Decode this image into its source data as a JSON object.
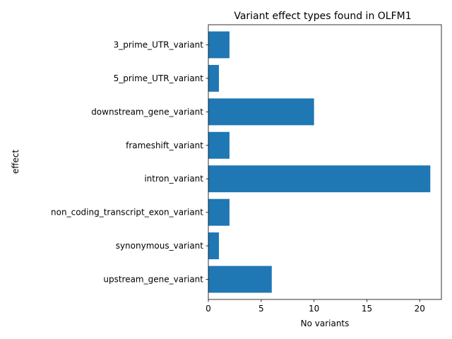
{
  "chart_data": {
    "type": "bar",
    "orientation": "horizontal",
    "title": "Variant effect types found in OLFM1",
    "xlabel": "No variants",
    "ylabel": "effect",
    "categories": [
      "3_prime_UTR_variant",
      "5_prime_UTR_variant",
      "downstream_gene_variant",
      "frameshift_variant",
      "intron_variant",
      "non_coding_transcript_exon_variant",
      "synonymous_variant",
      "upstream_gene_variant"
    ],
    "values": [
      2,
      1,
      10,
      2,
      21,
      2,
      1,
      6
    ],
    "xlim": [
      0,
      22.05
    ],
    "xticks": [
      0,
      5,
      10,
      15,
      20
    ],
    "grid": false,
    "bar_color": "#1f77b4"
  }
}
